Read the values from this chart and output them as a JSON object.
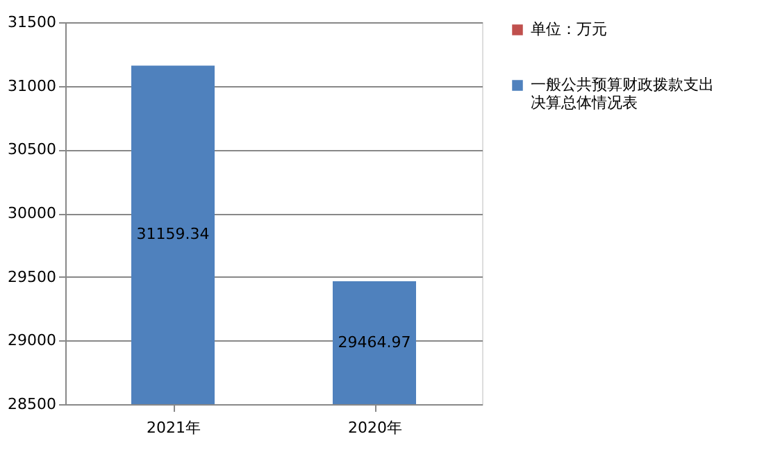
{
  "chart_data": {
    "type": "bar",
    "categories": [
      "2021年",
      "2020年"
    ],
    "series": [
      {
        "name": "单位：万元",
        "color": "#c0504d",
        "values": [
          null,
          null
        ]
      },
      {
        "name": "一般公共预算财政拨款支出决算总体情况表",
        "color": "#4f81bd",
        "values": [
          31159.34,
          29464.97
        ]
      }
    ],
    "ylim": [
      28500,
      31500
    ],
    "yticks": [
      28500,
      29000,
      29500,
      30000,
      30500,
      31000,
      31500
    ],
    "grid": "y",
    "legend": "right",
    "data_labels": true
  }
}
